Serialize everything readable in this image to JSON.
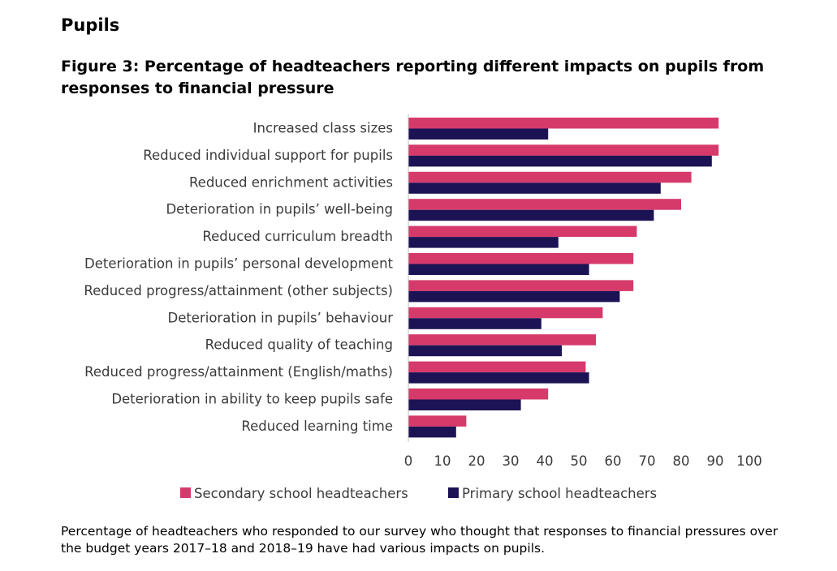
{
  "page": {
    "section_heading": "Pupils",
    "figure_title": "Figure 3: Percentage of headteachers reporting different impacts on pupils from responses to financial pressure",
    "caption": "Percentage of headteachers who responded to our survey who thought that responses to financial pressures over the budget years 2017–18 and 2018–19 have had various impacts on pupils."
  },
  "chart_data": {
    "type": "bar",
    "orientation": "horizontal",
    "categories": [
      "Increased class sizes",
      "Reduced individual support for pupils",
      "Reduced enrichment activities",
      "Deterioration in pupils’ well-being",
      "Reduced curriculum breadth",
      "Deterioration in pupils’ personal development",
      "Reduced progress/attainment (other subjects)",
      "Deterioration in pupils’ behaviour",
      "Reduced quality of teaching",
      "Reduced progress/attainment (English/maths)",
      "Deterioration in ability to keep pupils safe",
      "Reduced learning time"
    ],
    "series": [
      {
        "name": "Secondary school headteachers",
        "color": "#d63a6b",
        "values": [
          91,
          91,
          83,
          80,
          67,
          66,
          66,
          57,
          55,
          52,
          41,
          17
        ]
      },
      {
        "name": "Primary school headteachers",
        "color": "#1c1355",
        "values": [
          41,
          89,
          74,
          72,
          44,
          53,
          62,
          39,
          45,
          53,
          33,
          14
        ]
      }
    ],
    "xlim": [
      0,
      100
    ],
    "xticks": [
      "0",
      "10",
      "20",
      "30",
      "40",
      "50",
      "60",
      "70",
      "80",
      "90",
      "100"
    ],
    "grid": false,
    "legend_position": "bottom"
  }
}
